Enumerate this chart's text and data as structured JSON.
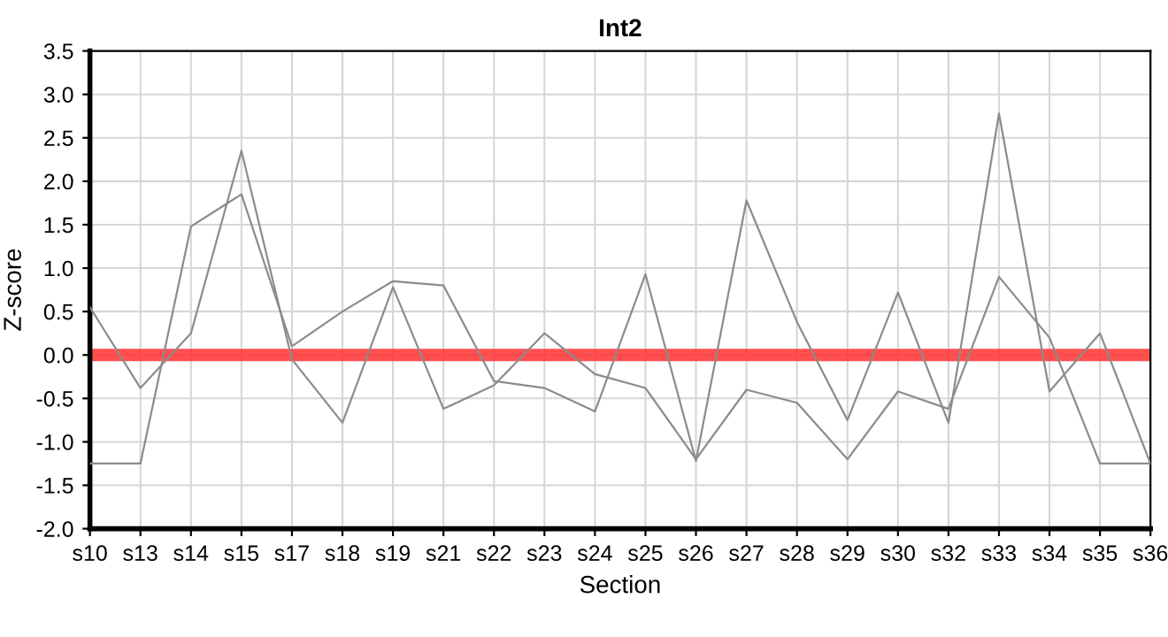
{
  "chart_data": {
    "type": "line",
    "title": "Int2",
    "xlabel": "Section",
    "ylabel": "Z-score",
    "categories": [
      "s10",
      "s13",
      "s14",
      "s15",
      "s17",
      "s18",
      "s19",
      "s21",
      "s22",
      "s23",
      "s24",
      "s25",
      "s26",
      "s27",
      "s28",
      "s29",
      "s30",
      "s32",
      "s33",
      "s34",
      "s35",
      "s36"
    ],
    "series": [
      {
        "color": "#8c8c8c",
        "values": [
          0.55,
          -0.38,
          0.25,
          2.35,
          -0.05,
          -0.78,
          0.78,
          -0.62,
          -0.35,
          0.25,
          -0.22,
          -0.38,
          -1.2,
          -0.4,
          -0.55,
          -1.2,
          -0.42,
          -0.62,
          0.9,
          0.2,
          -1.25,
          -1.25
        ]
      },
      {
        "color": "#8c8c8c",
        "values": [
          -1.25,
          -1.25,
          1.48,
          1.85,
          0.1,
          0.5,
          0.85,
          0.8,
          -0.3,
          -0.38,
          -0.65,
          0.93,
          -1.22,
          1.78,
          0.38,
          -0.75,
          0.72,
          -0.78,
          2.78,
          -0.42,
          0.25,
          -1.25
        ]
      }
    ],
    "ylim": [
      -2.0,
      3.5
    ],
    "yticks": [
      {
        "value": -2,
        "label": "-2.0"
      },
      {
        "value": -1.5,
        "label": "-1.5"
      },
      {
        "value": -1,
        "label": "-1.0"
      },
      {
        "value": -0.5,
        "label": "-0.5"
      },
      {
        "value": 0,
        "label": "0.0"
      },
      {
        "value": 0.5,
        "label": "0.5"
      },
      {
        "value": 1,
        "label": "1.0"
      },
      {
        "value": 1.5,
        "label": "1.5"
      },
      {
        "value": 2,
        "label": "2.0"
      },
      {
        "value": 2.5,
        "label": "2.5"
      },
      {
        "value": 3,
        "label": "3.0"
      },
      {
        "value": 3.5,
        "label": "3.5"
      }
    ],
    "ref_lines": [
      {
        "axis": "y",
        "value": 0,
        "color": "#ff3030"
      }
    ],
    "grid": true,
    "marker": "none",
    "line_style": "solid"
  }
}
